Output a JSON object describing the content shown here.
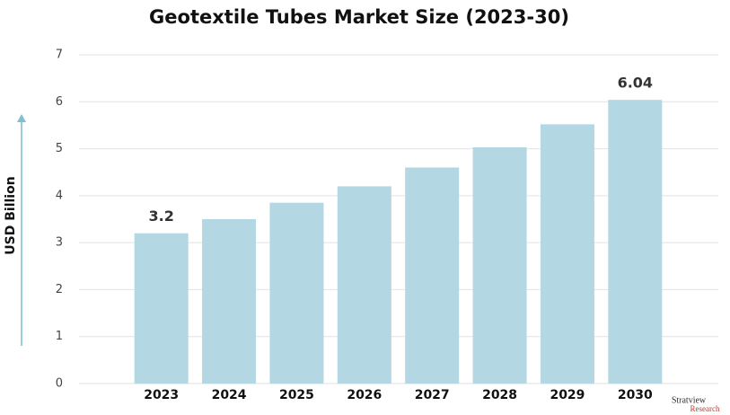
{
  "chart_data": {
    "type": "bar",
    "title": "Geotextile Tubes Market Size (2023-30)",
    "y_label": "USD Billion",
    "categories": [
      "2023",
      "2024",
      "2025",
      "2026",
      "2027",
      "2028",
      "2029",
      "2030"
    ],
    "values": [
      3.2,
      3.5,
      3.85,
      4.2,
      4.6,
      5.03,
      5.52,
      6.04
    ],
    "value_labels": [
      "3.2",
      null,
      null,
      null,
      null,
      null,
      null,
      "6.04"
    ],
    "color": "#b3d7e3",
    "ylim": [
      0,
      7
    ],
    "yticks": [
      0,
      1,
      2,
      3,
      4,
      5,
      6,
      7
    ],
    "grid": true
  },
  "logo": {
    "name": "Stratview",
    "sub": "Research"
  }
}
